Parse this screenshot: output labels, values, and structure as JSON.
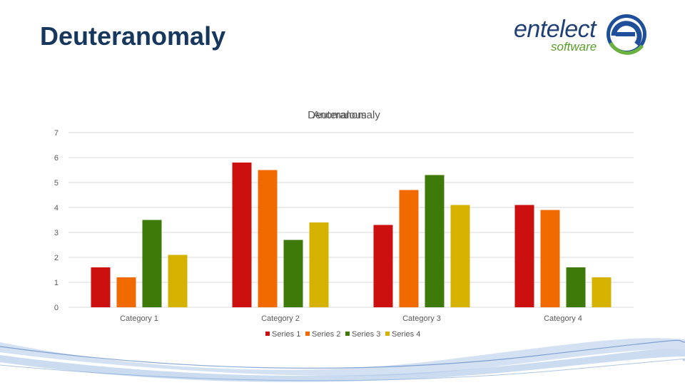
{
  "slide": {
    "title": "Deuteranomaly"
  },
  "logo": {
    "word": "entelect",
    "sub": "software"
  },
  "colors": {
    "title": "#17375e",
    "grid": "#d9d9d9",
    "text": "#595959"
  },
  "chart_data": {
    "type": "bar",
    "title_overlap": [
      "Deuteranomaly",
      "Anomalous"
    ],
    "categories": [
      "Category 1",
      "Category 2",
      "Category 3",
      "Category 4"
    ],
    "series": [
      {
        "name": "Series 1",
        "color": "#cc1010",
        "values": [
          1.6,
          5.8,
          3.3,
          4.1
        ]
      },
      {
        "name": "Series 2",
        "color": "#f06a00",
        "values": [
          1.2,
          5.5,
          4.7,
          3.9
        ]
      },
      {
        "name": "Series 3",
        "color": "#3e7a0a",
        "values": [
          3.5,
          2.7,
          5.3,
          1.6
        ]
      },
      {
        "name": "Series 4",
        "color": "#d6b200",
        "values": [
          2.1,
          3.4,
          4.1,
          1.2
        ]
      }
    ],
    "ylim": [
      0,
      7
    ],
    "yticks": [
      0,
      1,
      2,
      3,
      4,
      5,
      6,
      7
    ],
    "grid": true,
    "legend": "bottom"
  }
}
